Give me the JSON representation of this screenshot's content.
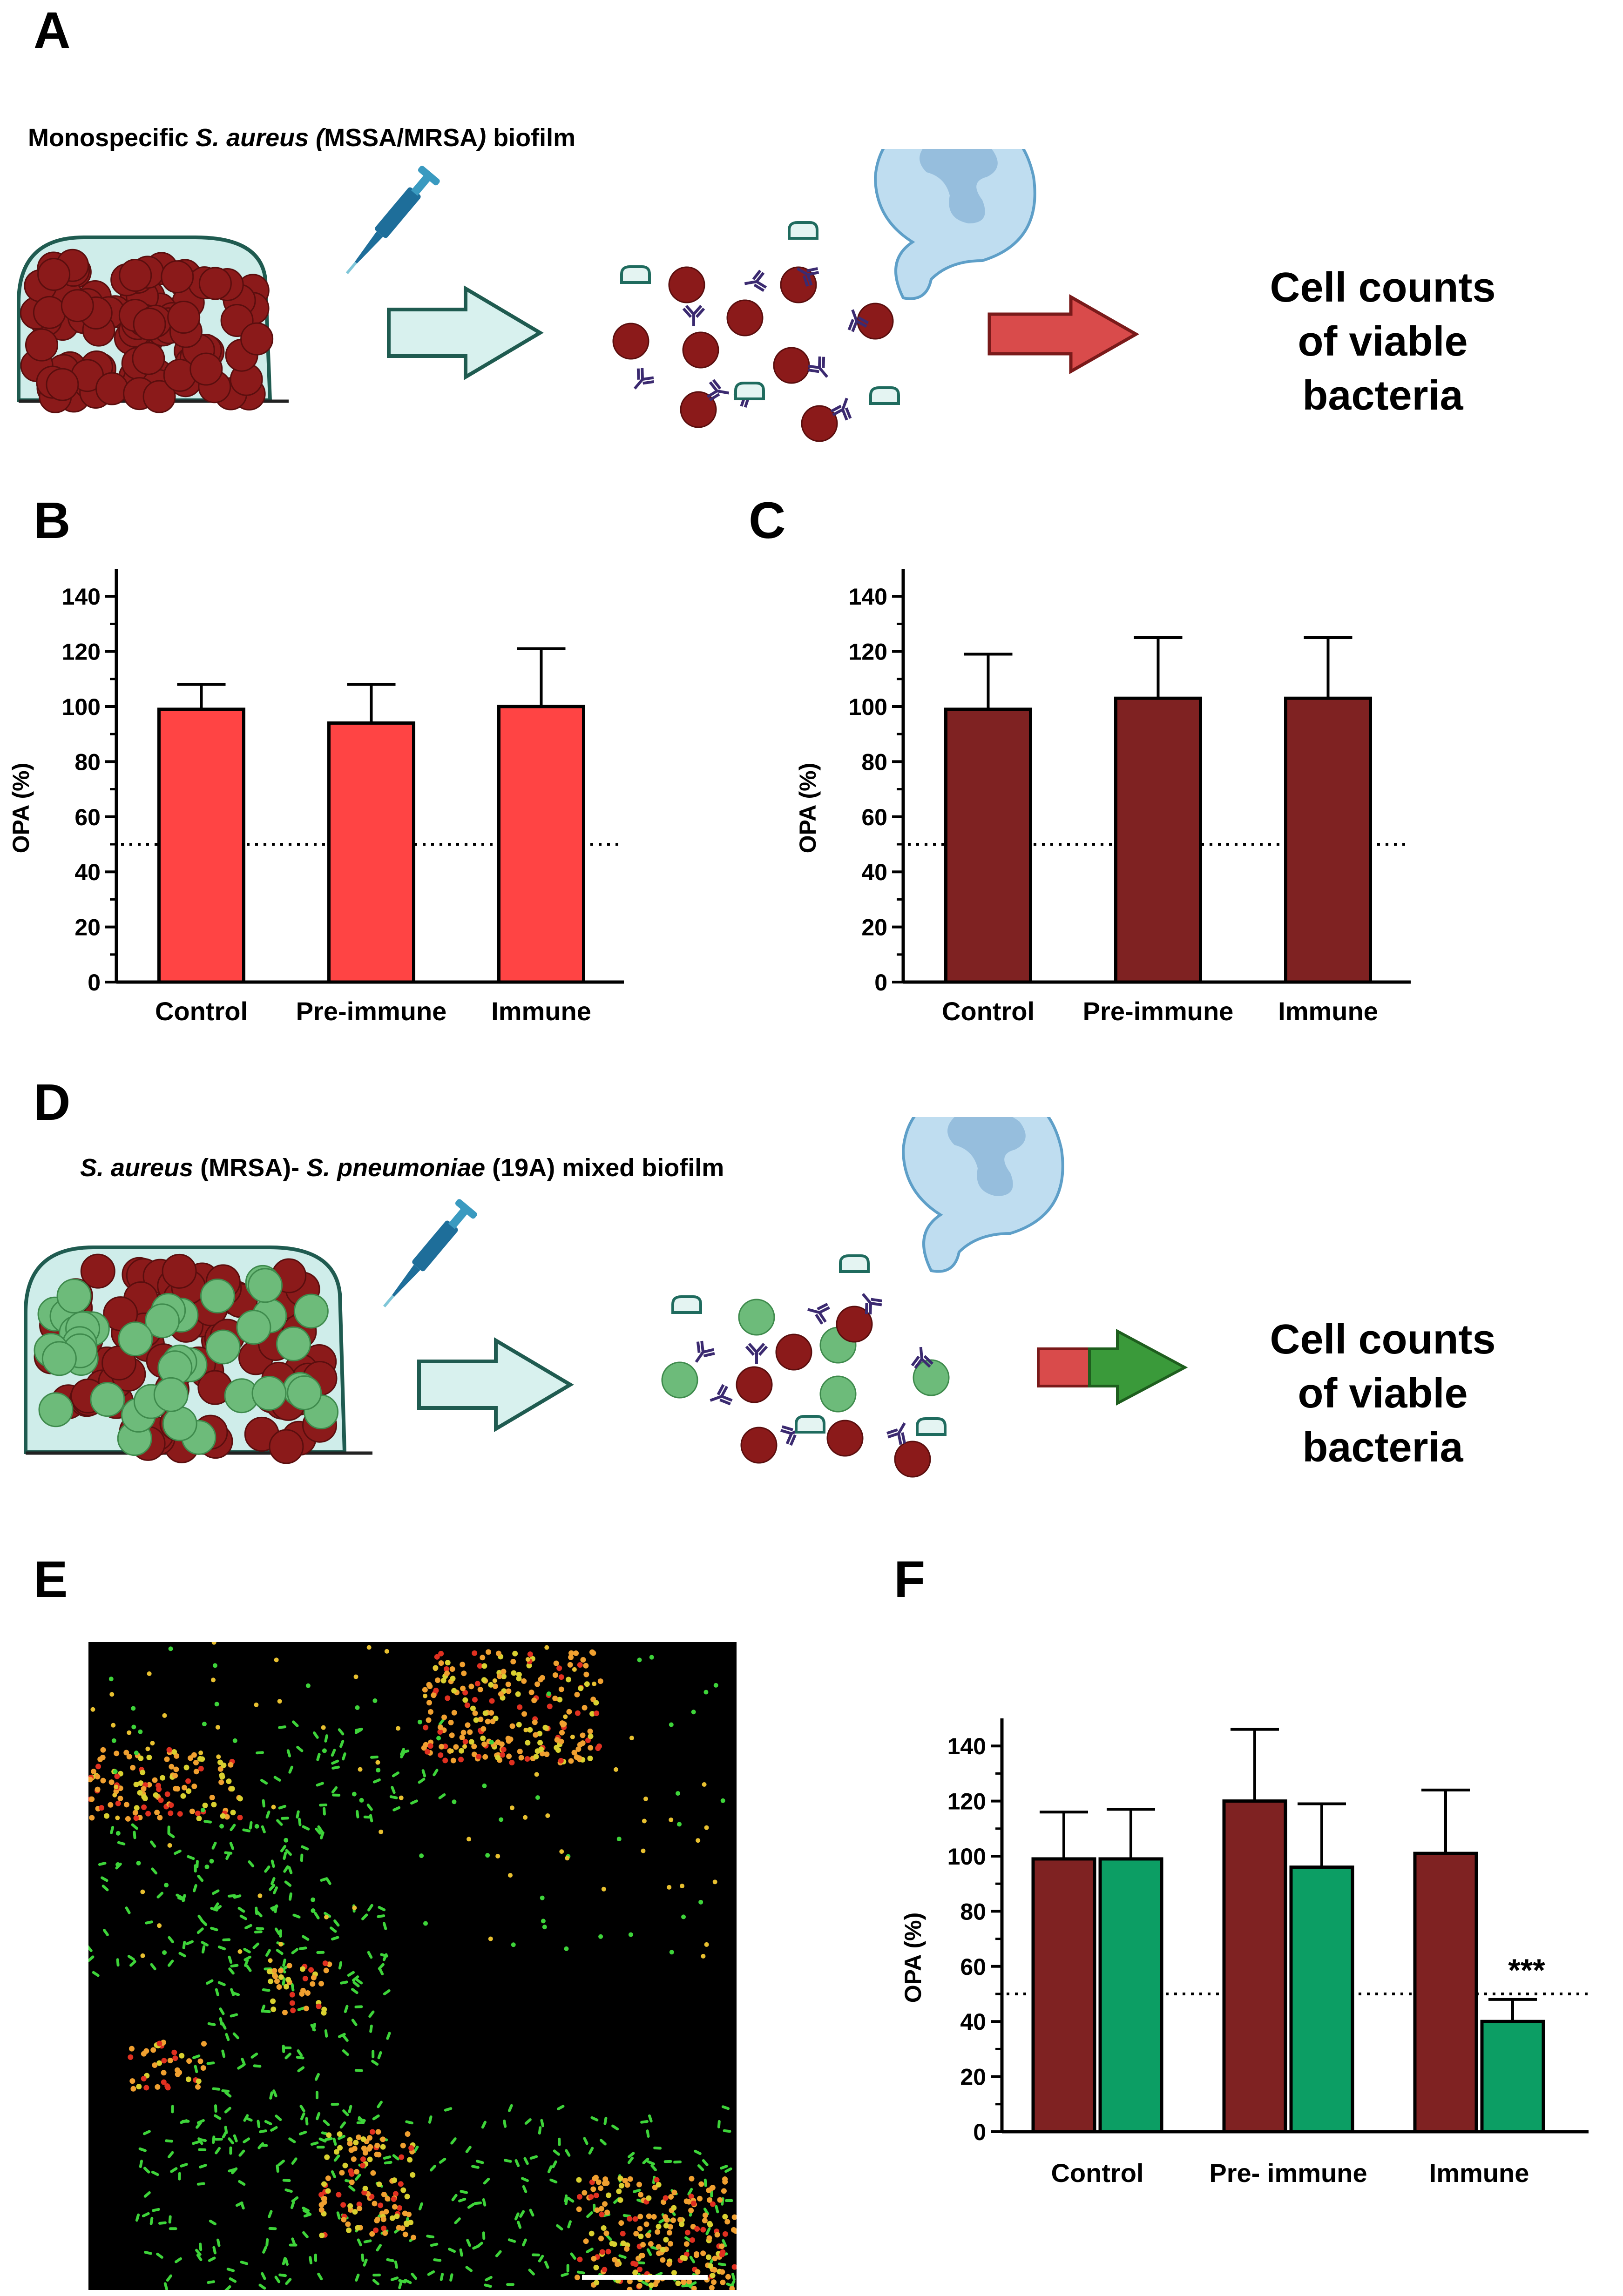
{
  "panel_labels": {
    "a": "A",
    "b": "B",
    "c": "C",
    "d": "D",
    "e": "E",
    "f": "F"
  },
  "panel_a": {
    "caption_pre": "Monospecific ",
    "caption_italic_1": "S. aureus (",
    "caption_mid": "MSSA/MRSA",
    "caption_italic_2": ")",
    "caption_post": " biofilm",
    "result_line1": "Cell counts",
    "result_line2": "of viable",
    "result_line3": "bacteria"
  },
  "panel_d": {
    "caption_italic_1": "S. aureus",
    "caption_mid": " (MRSA)- ",
    "caption_italic_2": "S. pneumoniae",
    "caption_post": " (19A) mixed biofilm",
    "result_line1": "Cell counts",
    "result_line2": "of viable",
    "result_line3": "bacteria"
  },
  "colors": {
    "staph_red": "#8B1A1A",
    "bar_red": "#FF4444",
    "bar_darkred": "#7F2222",
    "bar_green": "#0C9E64",
    "pneumo_green": "#6DBB7A",
    "biofilm_fill": "#CFEDEA",
    "arrow_fill": "#D8F1EE",
    "arrow_red": "#D94B4B",
    "arrow_green": "#3A9A3A",
    "antibody": "#3B2A70",
    "phagocyte": "#BFDDF0"
  },
  "icons": [
    "pipette-icon",
    "antibody-icon",
    "phagocyte-icon",
    "complement-icon"
  ],
  "chart_data": [
    {
      "id": "B",
      "type": "bar",
      "categories": [
        "Control",
        "Pre-immune",
        "Immune"
      ],
      "series": [
        {
          "values": [
            99,
            94,
            100
          ],
          "errors": [
            9,
            14,
            21
          ],
          "color": "#FF4444"
        }
      ],
      "ylabel": "OPA (%)",
      "ylim": [
        0,
        150
      ],
      "yticks": [
        0,
        20,
        40,
        60,
        80,
        100,
        120,
        140
      ],
      "reference_line": 50,
      "annotations": []
    },
    {
      "id": "C",
      "type": "bar",
      "categories": [
        "Control",
        "Pre-immune",
        "Immune"
      ],
      "series": [
        {
          "values": [
            99,
            103,
            103
          ],
          "errors": [
            20,
            22,
            22
          ],
          "color": "#7F2222"
        }
      ],
      "ylabel": "OPA (%)",
      "ylim": [
        0,
        150
      ],
      "yticks": [
        0,
        20,
        40,
        60,
        80,
        100,
        120,
        140
      ],
      "reference_line": 50,
      "annotations": []
    },
    {
      "id": "F",
      "type": "bar",
      "categories": [
        "Control",
        "Pre- immune",
        "Immune"
      ],
      "series": [
        {
          "values": [
            99,
            120,
            101
          ],
          "errors": [
            17,
            26,
            23
          ],
          "color": "#7F2222"
        },
        {
          "values": [
            99,
            96,
            40
          ],
          "errors": [
            18,
            23,
            8
          ],
          "color": "#0C9E64"
        }
      ],
      "ylabel": "OPA (%)",
      "ylim": [
        0,
        150
      ],
      "yticks": [
        0,
        20,
        40,
        60,
        80,
        100,
        120,
        140
      ],
      "reference_line": 50,
      "annotations": [
        {
          "category": "Immune",
          "series": 1,
          "text": "***"
        }
      ]
    }
  ]
}
